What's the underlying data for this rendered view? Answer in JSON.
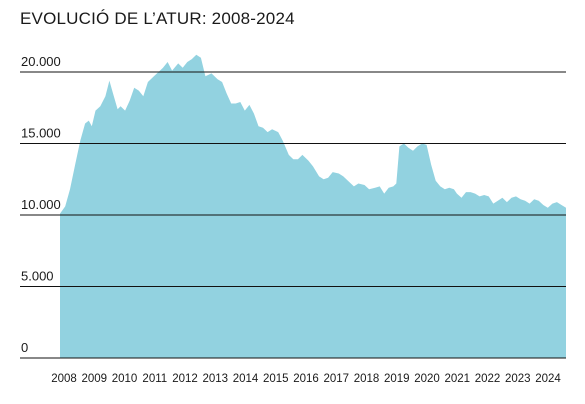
{
  "chart_data": {
    "type": "area",
    "title": "EVOLUCIÓ DE L’ATUR: 2008-2024",
    "xlabel": "",
    "ylabel": "",
    "ylim": [
      0,
      20000
    ],
    "xlim": [
      2008.0,
      2025.0
    ],
    "grid": true,
    "colors": {
      "fill": "#92D2E0",
      "grid": "#111111"
    },
    "y_ticks": [
      {
        "value": 0,
        "label": "0"
      },
      {
        "value": 5000,
        "label": "5.000"
      },
      {
        "value": 10000,
        "label": "10.000"
      },
      {
        "value": 15000,
        "label": "15.000"
      },
      {
        "value": 20000,
        "label": "20.000"
      }
    ],
    "x_ticks": [
      "2008",
      "2009",
      "2010",
      "2011",
      "2012",
      "2013",
      "2014",
      "2015",
      "2016",
      "2017",
      "2018",
      "2019",
      "2020",
      "2021",
      "2022",
      "2023",
      "2024"
    ],
    "series": [
      {
        "points": [
          [
            2008.0,
            10100
          ],
          [
            2008.17,
            10600
          ],
          [
            2008.33,
            11800
          ],
          [
            2008.5,
            13500
          ],
          [
            2008.67,
            15200
          ],
          [
            2008.83,
            16400
          ],
          [
            2008.95,
            16600
          ],
          [
            2009.05,
            16200
          ],
          [
            2009.17,
            17300
          ],
          [
            2009.33,
            17600
          ],
          [
            2009.5,
            18300
          ],
          [
            2009.63,
            19400
          ],
          [
            2009.75,
            18500
          ],
          [
            2009.9,
            17400
          ],
          [
            2010.0,
            17600
          ],
          [
            2010.15,
            17300
          ],
          [
            2010.3,
            18000
          ],
          [
            2010.45,
            18900
          ],
          [
            2010.6,
            18700
          ],
          [
            2010.75,
            18300
          ],
          [
            2010.9,
            19300
          ],
          [
            2011.1,
            19700
          ],
          [
            2011.25,
            20000
          ],
          [
            2011.4,
            20300
          ],
          [
            2011.55,
            20700
          ],
          [
            2011.7,
            20100
          ],
          [
            2011.9,
            20600
          ],
          [
            2012.05,
            20300
          ],
          [
            2012.2,
            20700
          ],
          [
            2012.35,
            20900
          ],
          [
            2012.5,
            21200
          ],
          [
            2012.65,
            21000
          ],
          [
            2012.8,
            19700
          ],
          [
            2013.0,
            19900
          ],
          [
            2013.2,
            19500
          ],
          [
            2013.35,
            19300
          ],
          [
            2013.5,
            18500
          ],
          [
            2013.65,
            17800
          ],
          [
            2013.8,
            17800
          ],
          [
            2013.95,
            17900
          ],
          [
            2014.1,
            17300
          ],
          [
            2014.25,
            17700
          ],
          [
            2014.4,
            17100
          ],
          [
            2014.55,
            16200
          ],
          [
            2014.7,
            16100
          ],
          [
            2014.85,
            15800
          ],
          [
            2015.0,
            16000
          ],
          [
            2015.2,
            15800
          ],
          [
            2015.35,
            15200
          ],
          [
            2015.55,
            14200
          ],
          [
            2015.7,
            13900
          ],
          [
            2015.85,
            13900
          ],
          [
            2016.0,
            14200
          ],
          [
            2016.2,
            13800
          ],
          [
            2016.35,
            13400
          ],
          [
            2016.55,
            12700
          ],
          [
            2016.7,
            12500
          ],
          [
            2016.85,
            12600
          ],
          [
            2017.0,
            13000
          ],
          [
            2017.2,
            12900
          ],
          [
            2017.35,
            12700
          ],
          [
            2017.55,
            12300
          ],
          [
            2017.7,
            12000
          ],
          [
            2017.85,
            12200
          ],
          [
            2018.05,
            12100
          ],
          [
            2018.2,
            11800
          ],
          [
            2018.4,
            11900
          ],
          [
            2018.55,
            12000
          ],
          [
            2018.7,
            11500
          ],
          [
            2018.85,
            11900
          ],
          [
            2019.0,
            12000
          ],
          [
            2019.1,
            12200
          ],
          [
            2019.2,
            14800
          ],
          [
            2019.35,
            15000
          ],
          [
            2019.5,
            14700
          ],
          [
            2019.65,
            14500
          ],
          [
            2019.8,
            14800
          ],
          [
            2019.95,
            15000
          ],
          [
            2020.1,
            14900
          ],
          [
            2020.25,
            13500
          ],
          [
            2020.4,
            12400
          ],
          [
            2020.55,
            12000
          ],
          [
            2020.7,
            11800
          ],
          [
            2020.85,
            11900
          ],
          [
            2021.0,
            11800
          ],
          [
            2021.1,
            11500
          ],
          [
            2021.25,
            11200
          ],
          [
            2021.4,
            11600
          ],
          [
            2021.55,
            11600
          ],
          [
            2021.7,
            11500
          ],
          [
            2021.85,
            11300
          ],
          [
            2022.0,
            11400
          ],
          [
            2022.15,
            11300
          ],
          [
            2022.3,
            10800
          ],
          [
            2022.45,
            11000
          ],
          [
            2022.6,
            11200
          ],
          [
            2022.75,
            10900
          ],
          [
            2022.9,
            11200
          ],
          [
            2023.05,
            11300
          ],
          [
            2023.2,
            11100
          ],
          [
            2023.35,
            11000
          ],
          [
            2023.5,
            10800
          ],
          [
            2023.65,
            11100
          ],
          [
            2023.8,
            11000
          ],
          [
            2023.95,
            10700
          ],
          [
            2024.1,
            10500
          ],
          [
            2024.25,
            10800
          ],
          [
            2024.4,
            10900
          ],
          [
            2024.55,
            10700
          ],
          [
            2024.7,
            10500
          ]
        ]
      }
    ]
  }
}
